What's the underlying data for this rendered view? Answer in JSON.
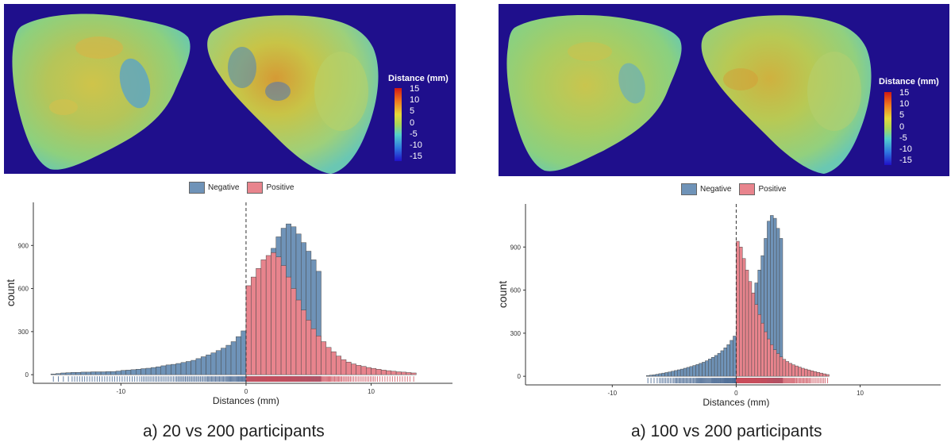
{
  "legend": {
    "title": "Distance (mm)",
    "ticks": [
      "15",
      "10",
      "5",
      "0",
      "-5",
      "-10",
      "-15"
    ]
  },
  "colors": {
    "negative": "#6f93b8",
    "positive": "#e8848d",
    "background_render": "#1f0f8c"
  },
  "hist_legend": {
    "negative_label": "Negative",
    "positive_label": "Positive"
  },
  "chart_data": [
    {
      "type": "bar",
      "xlabel": "Distances (mm)",
      "ylabel": "count",
      "xlim": [
        -17,
        16.5
      ],
      "ylim": [
        -60,
        1200
      ],
      "x_ticks": [
        "-10",
        "0",
        "10"
      ],
      "y_ticks": [
        "0",
        "300",
        "600",
        "900"
      ],
      "bin_width": 0.4,
      "negative": {
        "x_start": -15.6,
        "counts": [
          5,
          8,
          12,
          14,
          16,
          16,
          18,
          18,
          20,
          20,
          20,
          22,
          22,
          25,
          30,
          32,
          35,
          38,
          42,
          45,
          50,
          55,
          62,
          68,
          72,
          78,
          85,
          92,
          100,
          112,
          125,
          138,
          152,
          168,
          185,
          205,
          230,
          265,
          305,
          350,
          420,
          500,
          620,
          760,
          880,
          960,
          1020,
          1050,
          1030,
          980,
          920,
          860,
          800,
          720
        ]
      },
      "positive": {
        "x_start": 0.0,
        "counts": [
          620,
          680,
          740,
          800,
          830,
          850,
          820,
          760,
          680,
          600,
          520,
          450,
          380,
          320,
          270,
          230,
          190,
          160,
          130,
          105,
          88,
          75,
          65,
          58,
          50,
          44,
          38,
          32,
          28,
          24,
          20,
          18,
          15,
          12
        ]
      },
      "caption": "a) 20 vs 200 participants"
    },
    {
      "type": "bar",
      "xlabel": "Distances (mm)",
      "ylabel": "count",
      "xlim": [
        -17,
        16.5
      ],
      "ylim": [
        -60,
        1200
      ],
      "x_ticks": [
        "-10",
        "0",
        "10"
      ],
      "y_ticks": [
        "0",
        "300",
        "600",
        "900"
      ],
      "bin_width": 0.25,
      "negative": {
        "x_start": -7.25,
        "counts": [
          5,
          8,
          10,
          14,
          18,
          22,
          26,
          30,
          35,
          40,
          45,
          50,
          56,
          62,
          68,
          75,
          82,
          90,
          98,
          108,
          120,
          132,
          145,
          160,
          178,
          198,
          220,
          250,
          280,
          320,
          360,
          400,
          450,
          510,
          580,
          650,
          740,
          840,
          960,
          1080,
          1120,
          1100,
          1030,
          960
        ]
      },
      "positive": {
        "x_start": 0.0,
        "counts": [
          940,
          900,
          820,
          740,
          660,
          580,
          500,
          430,
          370,
          310,
          260,
          220,
          185,
          158,
          135,
          118,
          103,
          90,
          80,
          72,
          64,
          56,
          50,
          44,
          38,
          32,
          27,
          22,
          17,
          12
        ]
      },
      "caption": "a) 100 vs 200 participants"
    }
  ]
}
